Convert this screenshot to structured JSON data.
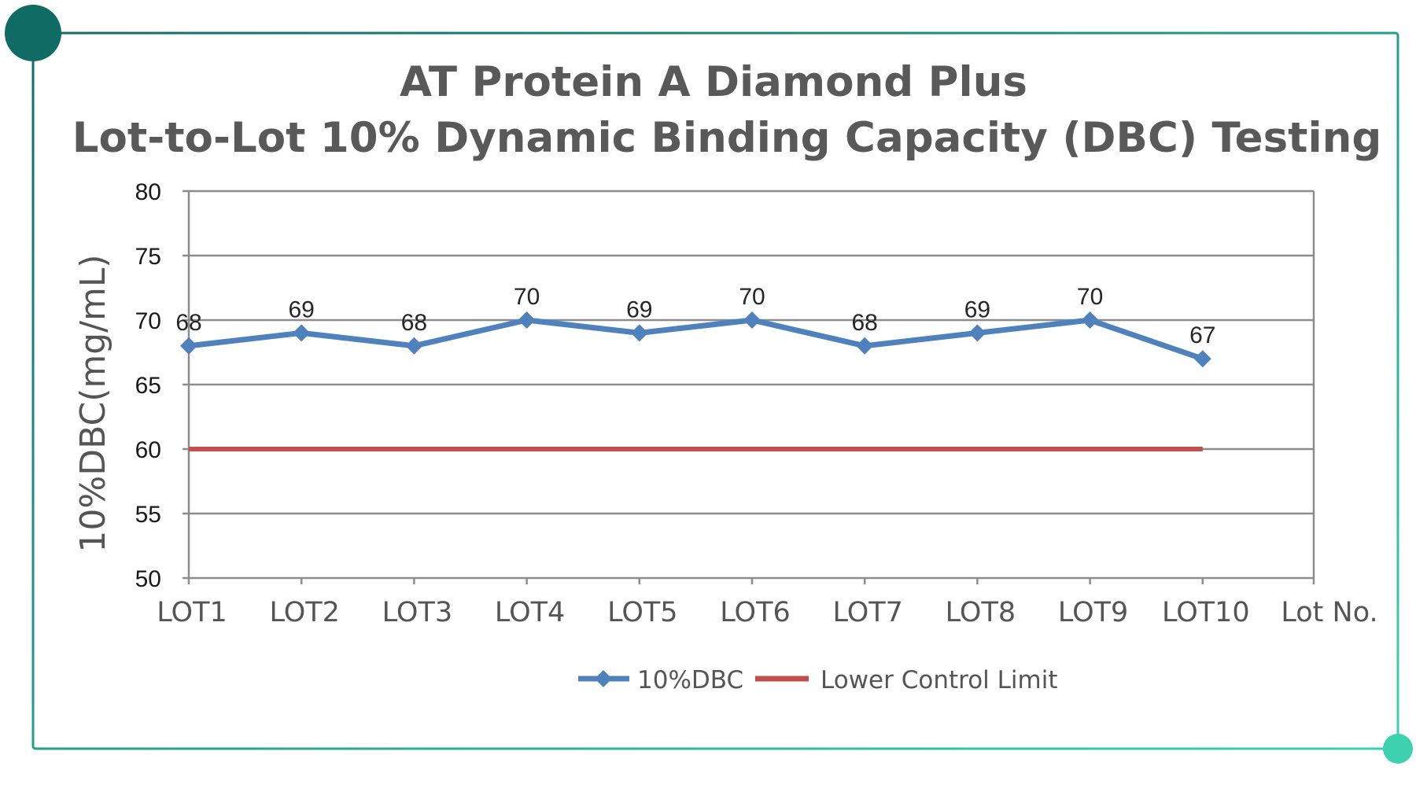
{
  "chart_data": {
    "type": "line",
    "title_line1": "AT Protein A Diamond Plus",
    "title_line2": "Lot-to-Lot 10% Dynamic Binding Capacity (DBC) Testing",
    "ylabel": "10%DBC(mg/mL)",
    "xlabel": "Lot No.",
    "ylim": [
      50,
      80
    ],
    "yticks": [
      "50",
      "55",
      "60",
      "65",
      "70",
      "75",
      "80"
    ],
    "categories": [
      "LOT1",
      "LOT2",
      "LOT3",
      "LOT4",
      "LOT5",
      "LOT6",
      "LOT7",
      "LOT8",
      "LOT9",
      "LOT10"
    ],
    "series": [
      {
        "name": "10%DBC",
        "values": [
          68,
          69,
          68,
          70,
          69,
          70,
          68,
          69,
          70,
          67
        ],
        "labels": [
          "68",
          "69",
          "68",
          "70",
          "69",
          "70",
          "68",
          "69",
          "70",
          "67"
        ],
        "color": "#4f81bd",
        "marker": "diamond"
      },
      {
        "name": "Lower Control Limit",
        "values": [
          60,
          60,
          60,
          60,
          60,
          60,
          60,
          60,
          60,
          60
        ],
        "color": "#c0504d"
      }
    ],
    "grid": true,
    "legend_position": "bottom-center"
  },
  "frame": {
    "accent_dark": "#0f6b64",
    "accent_light": "#3dd1ae"
  }
}
